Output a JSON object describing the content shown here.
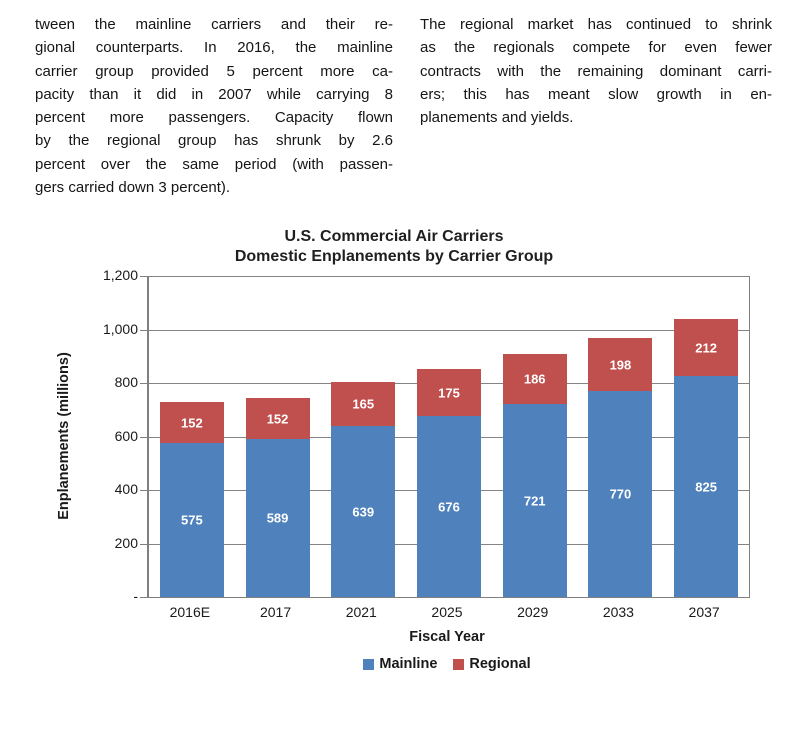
{
  "article": {
    "left_column": {
      "lines": [
        "tween the mainline carriers and their re-",
        "gional counterparts.  In 2016, the mainline",
        "carrier group provided 5 percent more ca-",
        "pacity than it did in 2007 while carrying 8",
        "percent more passengers.  Capacity flown",
        "by the regional group has shrunk by 2.6",
        "percent over the same period (with passen-",
        "gers carried down 3 percent)."
      ]
    },
    "right_column": {
      "lines": [
        "The regional market has continued to shrink",
        "as the regionals compete for even fewer",
        "contracts with the remaining dominant carri-",
        "ers; this has meant slow growth in en-",
        "planements and yields."
      ]
    }
  },
  "chart_data": {
    "type": "bar",
    "stacked": true,
    "title": "U.S. Commercial Air Carriers Domestic Enplanements by Carrier Group",
    "title_lines": [
      "U.S. Commercial Air Carriers",
      "Domestic Enplanements by Carrier Group"
    ],
    "xlabel": "Fiscal Year",
    "ylabel": "Enplanements (millions)",
    "categories": [
      "2016E",
      "2017",
      "2021",
      "2025",
      "2029",
      "2033",
      "2037"
    ],
    "series": [
      {
        "name": "Mainline",
        "color": "#4F81BD",
        "values": [
          575,
          589,
          639,
          676,
          721,
          770,
          825
        ]
      },
      {
        "name": "Regional",
        "color": "#C0504D",
        "values": [
          152,
          152,
          165,
          175,
          186,
          198,
          212
        ]
      }
    ],
    "ylim": [
      0,
      1200
    ],
    "ytick_interval": 200,
    "ytick_labels": [
      "-",
      "200",
      "400",
      "600",
      "800",
      "1,000",
      "1,200"
    ],
    "grid": true,
    "legend_position": "bottom",
    "bar_label_color": "#FFFFFF",
    "gridline_color": "#848484"
  }
}
